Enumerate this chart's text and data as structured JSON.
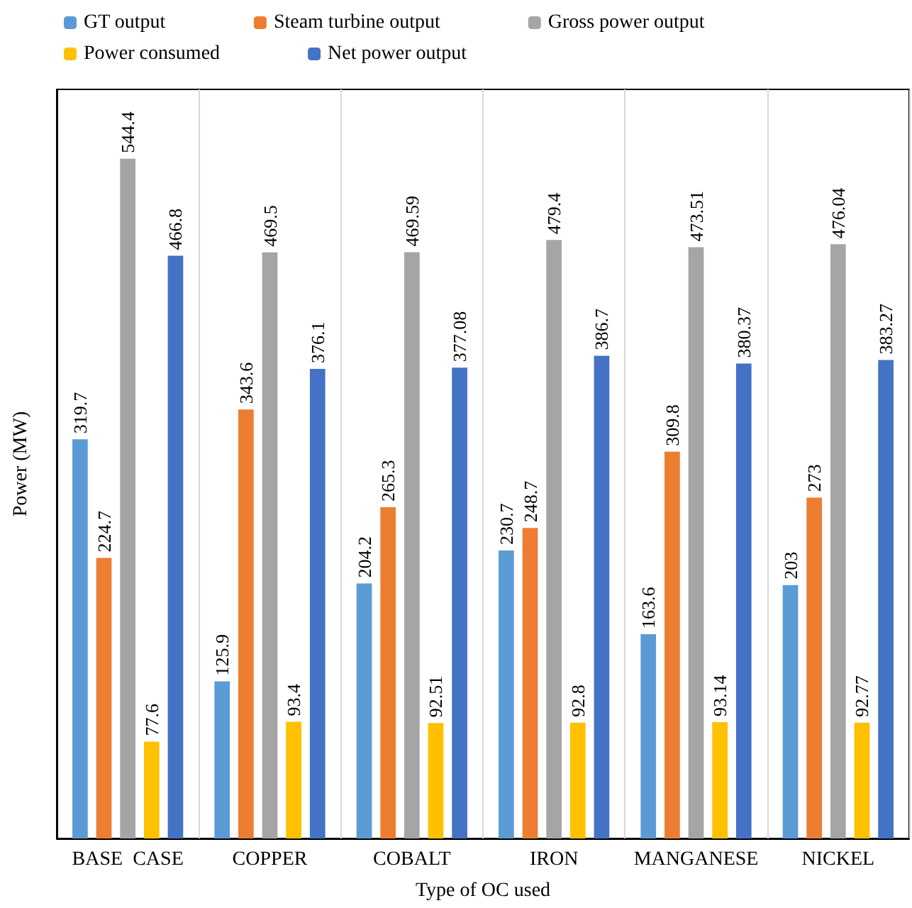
{
  "chart_data": {
    "type": "bar",
    "xlabel": "Type of OC used",
    "ylabel": "Power (MW)",
    "categories": [
      "BASE  CASE",
      "COPPER",
      "COBALT",
      "IRON",
      "MANGANESE",
      "NICKEL"
    ],
    "series": [
      {
        "name": "GT output",
        "color": "#5b9bd5",
        "values": [
          319.7,
          125.9,
          204.2,
          230.7,
          163.6,
          203
        ]
      },
      {
        "name": "Steam turbine output",
        "color": "#ed7d31",
        "values": [
          224.7,
          343.6,
          265.3,
          248.7,
          309.8,
          273
        ]
      },
      {
        "name": "Gross power output",
        "color": "#a5a5a5",
        "values": [
          544.4,
          469.5,
          469.59,
          479.4,
          473.51,
          476.04
        ]
      },
      {
        "name": "Power consumed",
        "color": "#ffc000",
        "values": [
          77.6,
          93.4,
          92.51,
          92.8,
          93.14,
          92.77
        ]
      },
      {
        "name": "Net power output",
        "color": "#4472c4",
        "values": [
          466.8,
          376.1,
          377.08,
          386.7,
          380.37,
          383.27
        ]
      }
    ],
    "data_labels": true,
    "grid": "x",
    "legend": "top",
    "tick_labels": "x"
  }
}
